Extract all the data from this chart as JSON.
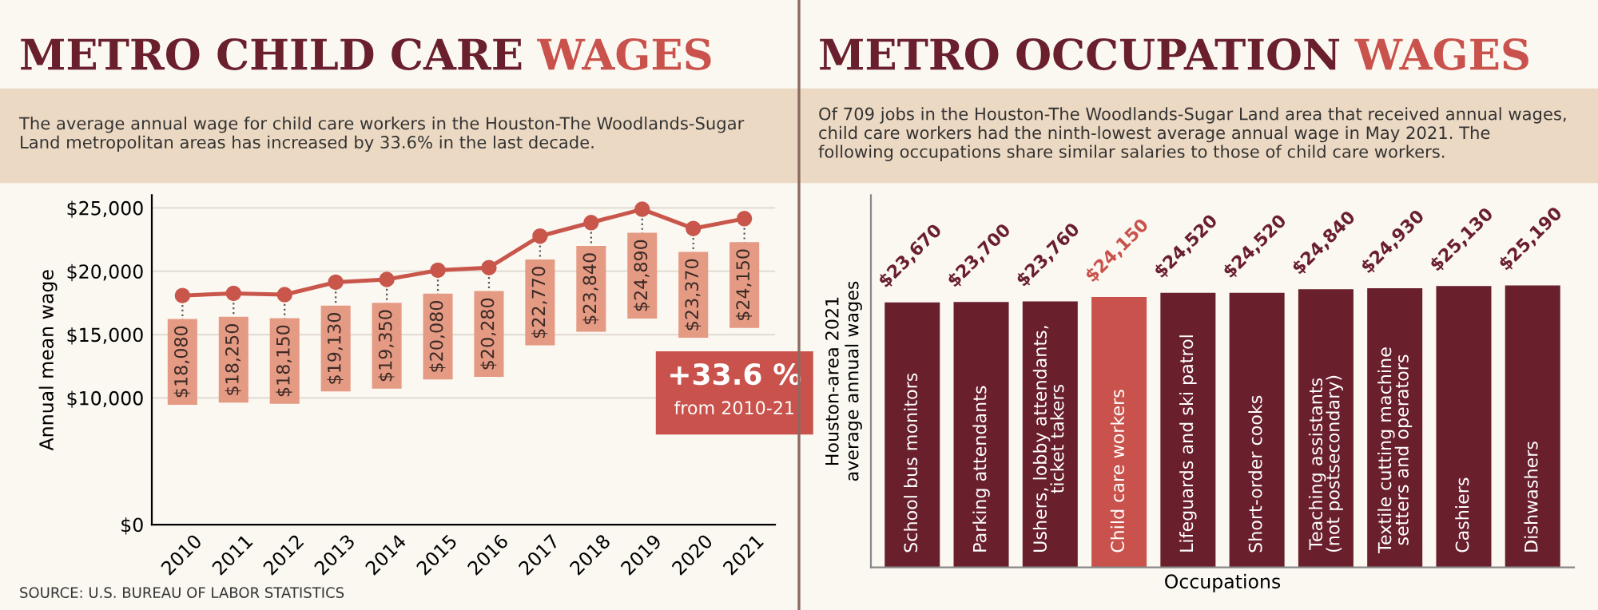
{
  "chart_data": [
    {
      "type": "line",
      "title": "METRO CHILD CARE WAGES",
      "subtitle": "The average annual wage for child care workers in the Houston-The Woodlands-Sugar Land metropolitan areas has increased by 33.6% in the last decade.",
      "ylabel": "Annual mean wage",
      "categories": [
        "2010",
        "2011",
        "2012",
        "2013",
        "2014",
        "2015",
        "2016",
        "2017",
        "2018",
        "2019",
        "2020",
        "2021"
      ],
      "series": [
        {
          "color": "#c8564b",
          "values": [
            18080,
            18250,
            18150,
            19130,
            19350,
            20080,
            20280,
            22770,
            23840,
            24890,
            23370,
            24150
          ],
          "value_labels": [
            "$18,080",
            "$18,250",
            "$18,150",
            "$19,130",
            "$19,350",
            "$20,080",
            "$20,280",
            "$22,770",
            "$23,840",
            "$24,890",
            "$23,370",
            "$24,150"
          ]
        }
      ],
      "ylim": [
        0,
        26000
      ],
      "yticks": [
        {
          "value": 0,
          "label": "$0"
        },
        {
          "value": 10000,
          "label": "$10,000"
        },
        {
          "value": 15000,
          "label": "$15,000"
        },
        {
          "value": 20000,
          "label": "$20,000"
        },
        {
          "value": 25000,
          "label": "$25,000"
        }
      ],
      "grid": "y",
      "marker": "circle",
      "line_style": "solid",
      "annotations": [
        "+33.6 %",
        "from 2010-21",
        "SOURCE: U.S. BUREAU OF LABOR STATISTICS"
      ]
    },
    {
      "type": "bar",
      "title": "METRO OCCUPATION WAGES",
      "subtitle": "Of 709 jobs in the Houston-The Woodlands-Sugar Land area that received annual wages, child care workers had the ninth-lowest average annual wage in May 2021. The following occupations share similar salaries to those of child care workers.",
      "xlabel": "Occupations",
      "ylabel": "Houston-area 2021\naverage annual wages",
      "categories": [
        "School bus monitors",
        "Parking attendants",
        "Ushers, lobby attendants,\nticket takers",
        "Child care workers",
        "Lifeguards and ski patrol",
        "Short-order cooks",
        "Teaching assistants\n(not postsecondary)",
        "Textile cutting machine\nsetters and operators",
        "Cashiers",
        "Dishwashers"
      ],
      "values": [
        23670,
        23700,
        23760,
        24150,
        24520,
        24520,
        24840,
        24930,
        25130,
        25190
      ],
      "colors": [
        "#6a1f2d",
        "#6a1f2d",
        "#6a1f2d",
        "#c9534c",
        "#6a1f2d",
        "#6a1f2d",
        "#6a1f2d",
        "#6a1f2d",
        "#6a1f2d",
        "#6a1f2d"
      ],
      "value_labels": [
        "$23,670",
        "$23,700",
        "$23,760",
        "$24,150",
        "$24,520",
        "$24,520",
        "$24,840",
        "$24,930",
        "$25,130",
        "$25,190"
      ]
    }
  ]
}
